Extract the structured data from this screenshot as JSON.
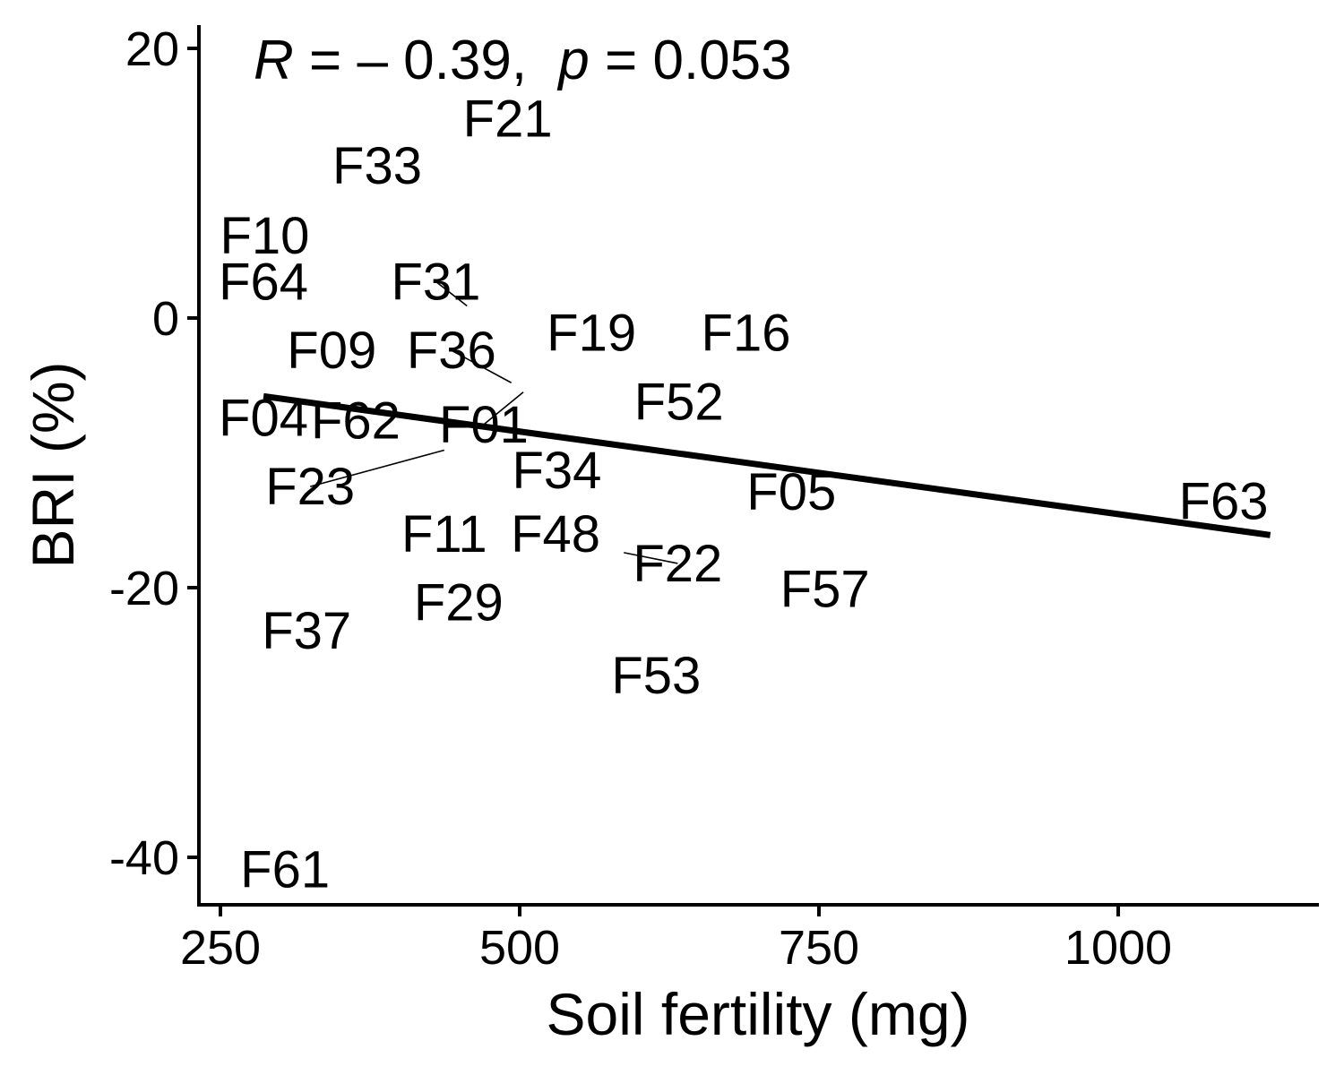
{
  "chart_data": {
    "type": "scatter",
    "xlabel": "Soil fertility (mg)",
    "ylabel": "BRI (%)",
    "xlim": [
      240,
      1170
    ],
    "ylim": [
      -43.5,
      22
    ],
    "x_ticks": [
      250,
      500,
      750,
      1000
    ],
    "y_ticks": [
      20,
      0,
      -20,
      -40
    ],
    "x_tick_labels": [
      "250",
      "500",
      "750",
      "1000"
    ],
    "y_tick_labels": [
      "20",
      "0",
      "-20",
      "-40"
    ],
    "grid": false,
    "legend": "none",
    "annotation": {
      "r_symbol": "R",
      "r_value": "= – 0.39,",
      "p_symbol": "p",
      "p_value": "= 0.053"
    },
    "fit_line": {
      "x": [
        286,
        1127
      ],
      "y": [
        -5.8,
        -16.1
      ]
    },
    "points": [
      {
        "label": "F21",
        "x": 490,
        "y": 14.8
      },
      {
        "label": "F33",
        "x": 381,
        "y": 11.3
      },
      {
        "label": "F10",
        "x": 287,
        "y": 6.1
      },
      {
        "label": "F64",
        "x": 286,
        "y": 2.7
      },
      {
        "label": "F31",
        "x": 456,
        "y": 0.9,
        "lx": 430,
        "ly": 2.7
      },
      {
        "label": "F19",
        "x": 560,
        "y": -1.1
      },
      {
        "label": "F16",
        "x": 689,
        "y": -1.1
      },
      {
        "label": "F09",
        "x": 343,
        "y": -2.4
      },
      {
        "label": "F36",
        "x": 493,
        "y": -4.8,
        "lx": 443,
        "ly": -2.4
      },
      {
        "label": "F52",
        "x": 633,
        "y": -6.2
      },
      {
        "label": "F04",
        "x": 286,
        "y": -7.4
      },
      {
        "label": "F62",
        "x": 363,
        "y": -7.6
      },
      {
        "label": "F01",
        "x": 503,
        "y": -5.5,
        "lx": 470,
        "ly": -7.9
      },
      {
        "label": "F23",
        "x": 437,
        "y": -9.8,
        "lx": 325,
        "ly": -12.5
      },
      {
        "label": "F34",
        "x": 531,
        "y": -11.3
      },
      {
        "label": "F05",
        "x": 727,
        "y": -12.9
      },
      {
        "label": "F63",
        "x": 1088,
        "y": -13.6
      },
      {
        "label": "F11",
        "x": 437,
        "y": -16.0
      },
      {
        "label": "F48",
        "x": 530,
        "y": -16.0
      },
      {
        "label": "F22",
        "x": 587,
        "y": -17.4,
        "lx": 632,
        "ly": -18.2
      },
      {
        "label": "F57",
        "x": 755,
        "y": -20.1
      },
      {
        "label": "F29",
        "x": 449,
        "y": -21.1
      },
      {
        "label": "F37",
        "x": 322,
        "y": -23.2
      },
      {
        "label": "F53",
        "x": 614,
        "y": -26.5
      },
      {
        "label": "F48",
        "x": 569,
        "y": -19.8,
        "hidden_label": true
      },
      {
        "label": "F61",
        "x": 304,
        "y": -40.9
      }
    ]
  }
}
